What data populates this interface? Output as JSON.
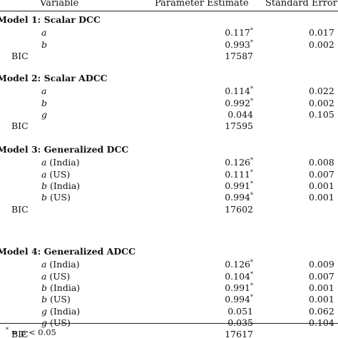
{
  "header": {
    "variable": "Variable",
    "estimate": "Parameter Estimate",
    "stderr": "Standard Error"
  },
  "groups": [
    {
      "title": "Model 1: Scalar DCC",
      "rows": [
        {
          "param": "a",
          "suffix": "",
          "estimate": "0.117",
          "star": "*",
          "se": "0.017"
        },
        {
          "param": "b",
          "suffix": "",
          "estimate": "0.993",
          "star": "*",
          "se": "0.002"
        }
      ],
      "bic_label": "BIC",
      "bic": "17587"
    },
    {
      "title": "Model 2: Scalar ADCC",
      "rows": [
        {
          "param": "a",
          "suffix": "",
          "estimate": "0.114",
          "star": "*",
          "se": "0.022"
        },
        {
          "param": "b",
          "suffix": "",
          "estimate": "0.992",
          "star": "*",
          "se": "0.002"
        },
        {
          "param": "g",
          "suffix": "",
          "estimate": "0.044",
          "star": "",
          "se": "0.105"
        }
      ],
      "bic_label": "BIC",
      "bic": "17595"
    },
    {
      "title": "Model 3: Generalized DCC",
      "rows": [
        {
          "param": "a",
          "suffix": " (India)",
          "estimate": "0.126",
          "star": "*",
          "se": "0.008"
        },
        {
          "param": "a",
          "suffix": " (US)",
          "estimate": "0.111",
          "star": "*",
          "se": "0.007"
        },
        {
          "param": "b",
          "suffix": " (India)",
          "estimate": "0.991",
          "star": "*",
          "se": "0.001"
        },
        {
          "param": "b",
          "suffix": " (US)",
          "estimate": "0.994",
          "star": "*",
          "se": "0.001"
        }
      ],
      "bic_label": "BIC",
      "bic": "17602"
    },
    {
      "title": "Model 4: Generalized ADCC",
      "rows": [
        {
          "param": "a",
          "suffix": " (India)",
          "estimate": "0.126",
          "star": "*",
          "se": "0.009"
        },
        {
          "param": "a",
          "suffix": " (US)",
          "estimate": "0.104",
          "star": "*",
          "se": "0.007"
        },
        {
          "param": "b",
          "suffix": " (India)",
          "estimate": "0.991",
          "star": "*",
          "se": "0.001"
        },
        {
          "param": "b",
          "suffix": " (US)",
          "estimate": "0.994",
          "star": "*",
          "se": "0.001"
        },
        {
          "param": "g",
          "suffix": " (India)",
          "estimate": "0.051",
          "star": "",
          "se": "0.062"
        },
        {
          "param": "g",
          "suffix": " (US)",
          "estimate": "0.035",
          "star": "",
          "se": "0.104"
        }
      ],
      "bic_label": "BIC",
      "bic": "17617"
    }
  ],
  "footnote": {
    "star": "*",
    "text": " = p < 0.05"
  }
}
